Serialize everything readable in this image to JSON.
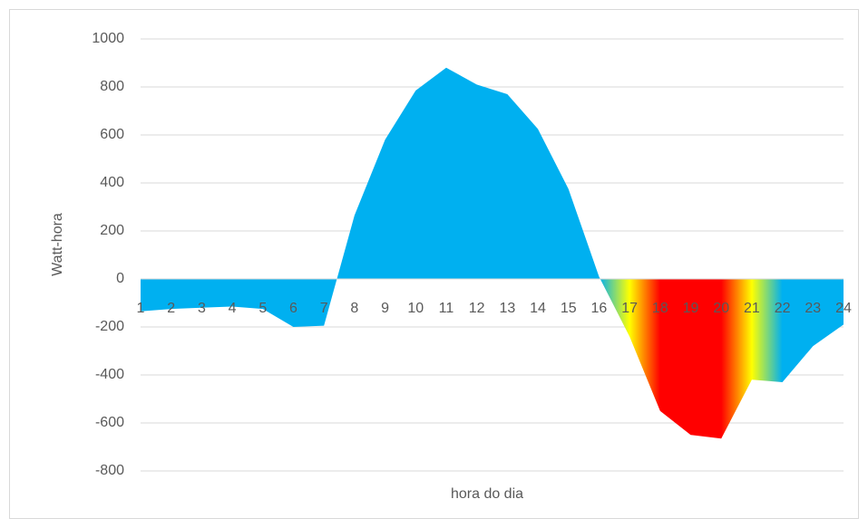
{
  "chart_data": {
    "type": "area",
    "x_label": "hora do dia",
    "y_label": "Watt-hora",
    "categories": [
      "1",
      "2",
      "3",
      "4",
      "5",
      "6",
      "7",
      "8",
      "9",
      "10",
      "11",
      "12",
      "13",
      "14",
      "15",
      "16",
      "17",
      "18",
      "19",
      "20",
      "21",
      "22",
      "23",
      "24"
    ],
    "values": [
      -135,
      -125,
      -120,
      -115,
      -125,
      -200,
      -195,
      265,
      580,
      785,
      880,
      810,
      770,
      625,
      375,
      10,
      -240,
      -550,
      -650,
      -665,
      -420,
      -430,
      -280,
      -190
    ],
    "colors": [
      "#00b0f0",
      "#00b0f0",
      "#00b0f0",
      "#00b0f0",
      "#00b0f0",
      "#00b0f0",
      "#00b0f0",
      "#00b0f0",
      "#00b0f0",
      "#00b0f0",
      "#00b0f0",
      "#00b0f0",
      "#00b0f0",
      "#00b0f0",
      "#00b0f0",
      "#00b0f0",
      "#ffff00",
      "#ff0000",
      "#ff0000",
      "#ff0000",
      "#ffff00",
      "#00b0f0",
      "#00b0f0",
      "#00b0f0"
    ],
    "ylim": [
      -800,
      1000
    ],
    "yticks": [
      -800,
      -600,
      -400,
      -200,
      0,
      200,
      400,
      600,
      800,
      1000
    ],
    "grid": true
  }
}
